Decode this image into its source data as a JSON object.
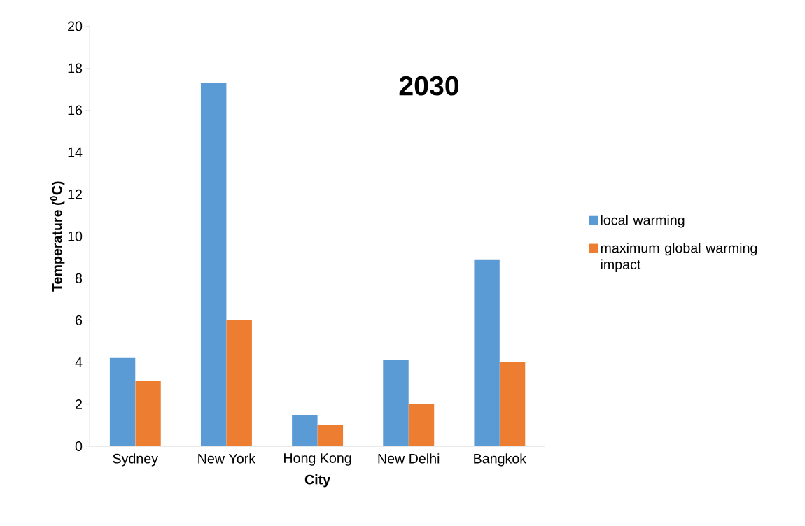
{
  "chart_data": {
    "type": "bar",
    "title": "2030",
    "xlabel": "City",
    "ylabel": "Temperature ($^{0}$C)",
    "categories": [
      "Sydney",
      "New York",
      "Hong Kong",
      "New Delhi",
      "Bangkok"
    ],
    "series": [
      {
        "name": "local warming",
        "color": "#5b9bd5",
        "values": [
          4.2,
          17.3,
          1.5,
          4.1,
          8.9
        ]
      },
      {
        "name": "maximum global warming impact",
        "color": "#ed7d31",
        "values": [
          3.1,
          6,
          1,
          2,
          4
        ]
      }
    ],
    "ylim": [
      0,
      20
    ],
    "yticks": [
      0,
      2,
      4,
      6,
      8,
      10,
      12,
      14,
      16,
      18,
      20
    ],
    "grid": false,
    "legend": "right"
  }
}
